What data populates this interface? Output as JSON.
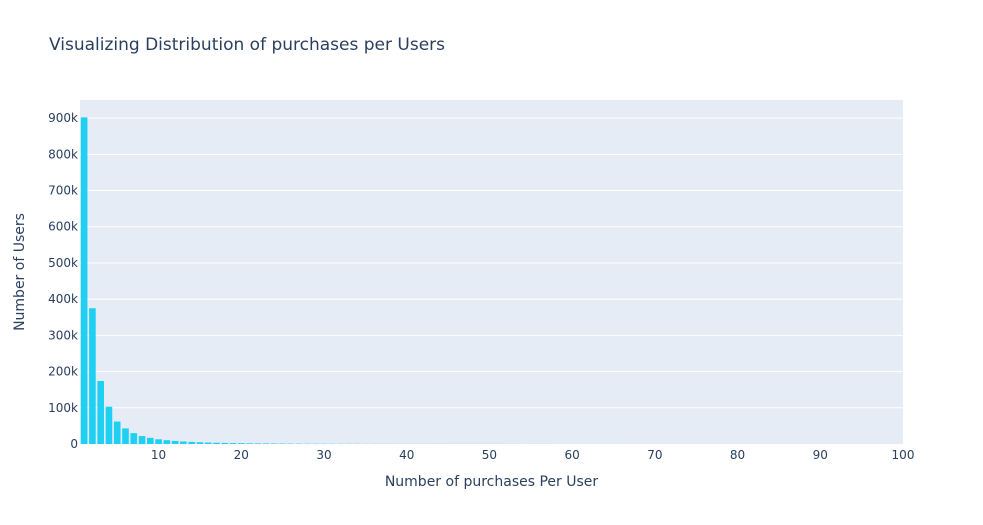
{
  "chart_data": {
    "type": "bar",
    "title": "Visualizing Distribution of purchases per Users",
    "xlabel": "Number of purchases Per User",
    "ylabel": "Number of Users",
    "xlim": [
      0.5,
      100
    ],
    "ylim": [
      0,
      950000
    ],
    "x_ticks": [
      10,
      20,
      30,
      40,
      50,
      60,
      70,
      80,
      90,
      100
    ],
    "y_ticks": [
      {
        "value": 0,
        "label": "0"
      },
      {
        "value": 100000,
        "label": "100k"
      },
      {
        "value": 200000,
        "label": "200k"
      },
      {
        "value": 300000,
        "label": "300k"
      },
      {
        "value": 400000,
        "label": "400k"
      },
      {
        "value": 500000,
        "label": "500k"
      },
      {
        "value": 600000,
        "label": "600k"
      },
      {
        "value": 700000,
        "label": "700k"
      },
      {
        "value": 800000,
        "label": "800k"
      },
      {
        "value": 900000,
        "label": "900k"
      }
    ],
    "grid": true,
    "bar_color": "#1fd0f2",
    "plot_bg_color": "#e5ecf6",
    "x": [
      1,
      2,
      3,
      4,
      5,
      6,
      7,
      8,
      9,
      10,
      11,
      12,
      13,
      14,
      15,
      16,
      17,
      18,
      19,
      20,
      21,
      22,
      23,
      24,
      25,
      26,
      27,
      28,
      29,
      30,
      31,
      32,
      33,
      34,
      35,
      36,
      37,
      38,
      39,
      40,
      41,
      42,
      43,
      44,
      45,
      46,
      47,
      48,
      49,
      50,
      51,
      52,
      53,
      54,
      55,
      56,
      57,
      58,
      59,
      60,
      61,
      62,
      63,
      64,
      65,
      66,
      67,
      68,
      69,
      70,
      71,
      72,
      73,
      74,
      75,
      76,
      77,
      78,
      79,
      80,
      81,
      82,
      83,
      84,
      85,
      86,
      87,
      88,
      89,
      90,
      91,
      92,
      93,
      94,
      95,
      96,
      97,
      98,
      99,
      100
    ],
    "values": [
      902000,
      375000,
      174000,
      103000,
      62000,
      43000,
      30000,
      22000,
      17000,
      13000,
      10500,
      8500,
      7000,
      5800,
      4900,
      4100,
      3500,
      3000,
      2600,
      2250,
      1950,
      1700,
      1500,
      1320,
      1160,
      1030,
      920,
      820,
      730,
      650,
      580,
      520,
      470,
      425,
      385,
      350,
      318,
      290,
      265,
      242,
      221,
      202,
      185,
      170,
      156,
      143,
      131,
      121,
      111,
      103,
      95,
      88,
      81,
      75,
      69,
      64,
      59,
      55,
      51,
      47,
      44,
      41,
      38,
      35,
      33,
      31,
      29,
      27,
      25,
      23,
      22,
      20,
      19,
      18,
      17,
      16,
      15,
      14,
      13,
      12,
      11,
      11,
      10,
      9,
      9,
      8,
      8,
      7,
      7,
      6,
      6,
      6,
      5,
      5,
      5,
      4,
      4,
      4,
      4,
      3
    ]
  }
}
